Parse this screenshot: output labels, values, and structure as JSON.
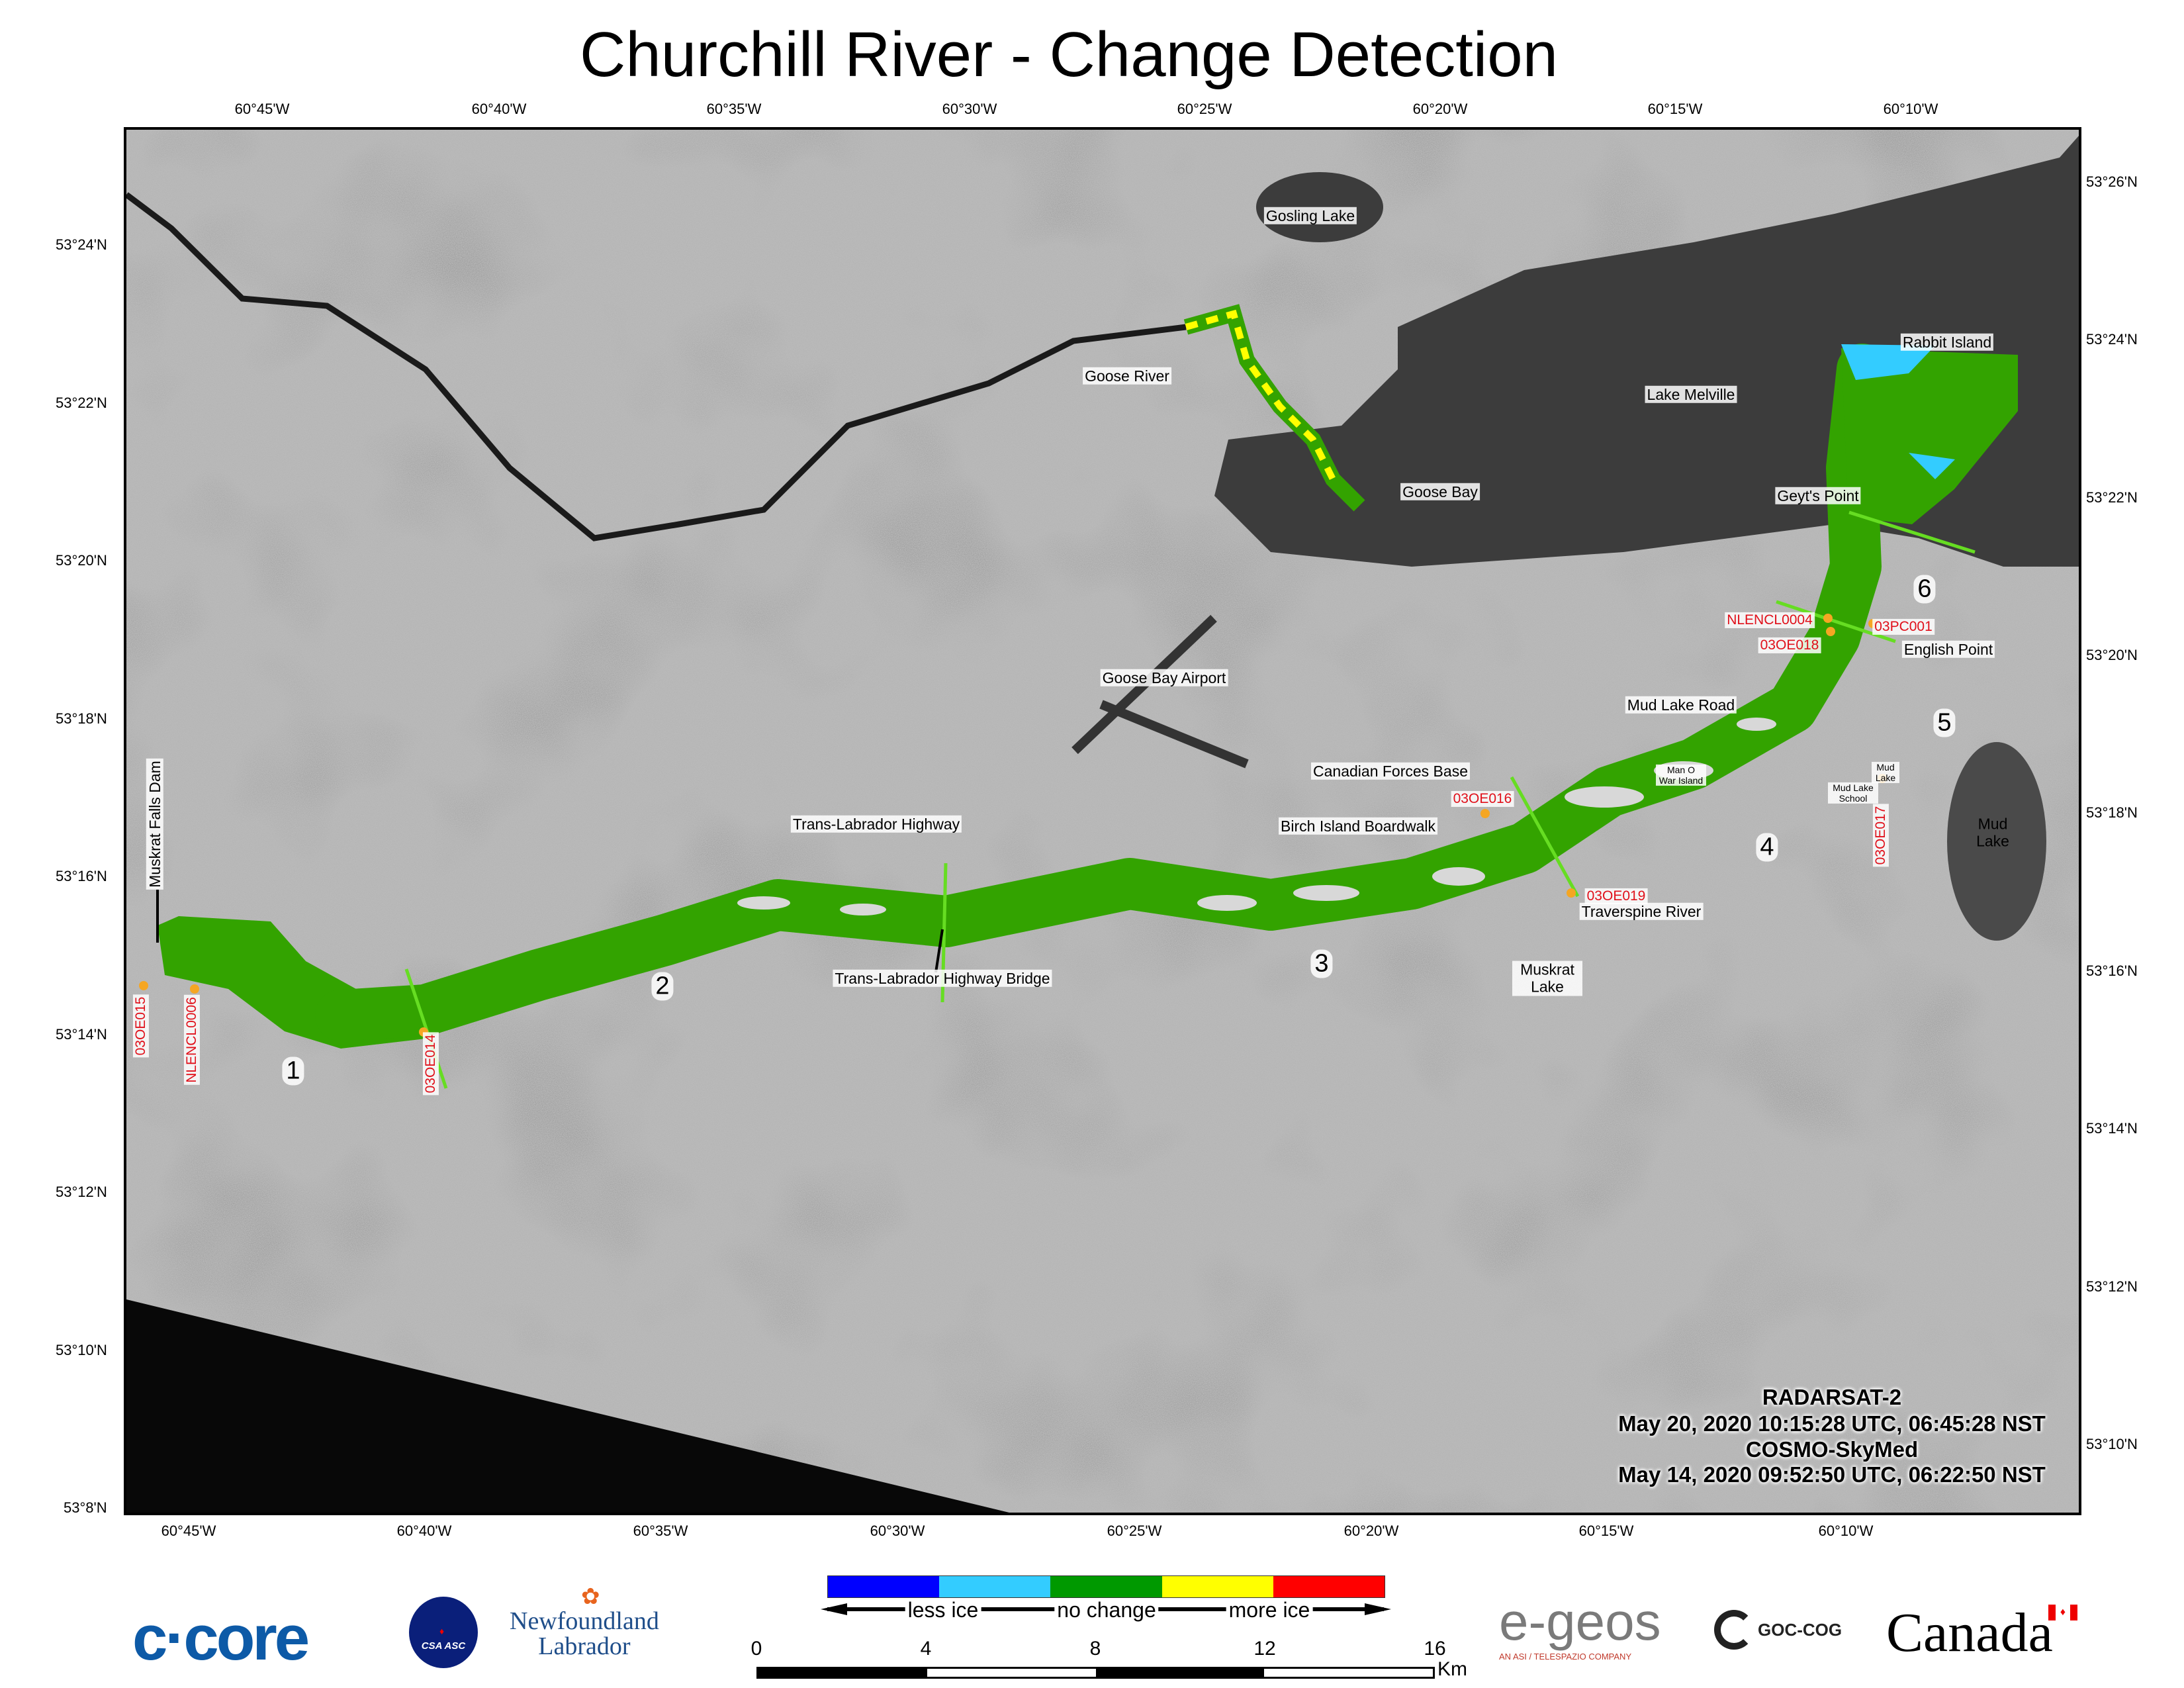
{
  "title": "Churchill River - Change Detection",
  "axes": {
    "top_lon": [
      "60°45'W",
      "60°40'W",
      "60°35'W",
      "60°30'W",
      "60°25'W",
      "60°20'W",
      "60°15'W",
      "60°10'W"
    ],
    "bottom_lon": [
      "60°45'W",
      "60°40'W",
      "60°35'W",
      "60°30'W",
      "60°25'W",
      "60°20'W",
      "60°15'W",
      "60°10'W"
    ],
    "left_lat": [
      "53°24'N",
      "53°22'N",
      "53°20'N",
      "53°18'N",
      "53°16'N",
      "53°14'N",
      "53°12'N",
      "53°10'N",
      "53°8'N"
    ],
    "right_lat": [
      "53°26'N",
      "53°24'N",
      "53°22'N",
      "53°20'N",
      "53°18'N",
      "53°16'N",
      "53°14'N",
      "53°12'N",
      "53°10'N"
    ]
  },
  "map": {
    "places": [
      "Gosling Lake",
      "Goose River",
      "Lake Melville",
      "Rabbit Island",
      "Goose Bay",
      "Geyt's Point",
      "English Point",
      "Goose Bay Airport",
      "Mud Lake Road",
      "Canadian Forces Base",
      "Man O War Island",
      "Mud Lake",
      "Mud Lake School",
      "Trans-Labrador Highway",
      "Birch Island Boardwalk",
      "Mud Lake",
      "Traverspine River",
      "Muskrat Lake",
      "Trans-Labrador Highway Bridge",
      "Muskrat Falls Dam"
    ],
    "stations": [
      "NLENCL0004",
      "03PC001",
      "03OE018",
      "03OE016",
      "03OE017",
      "03OE019",
      "03OE015",
      "NLENCL0006",
      "03OE014"
    ],
    "sections": [
      "1",
      "2",
      "3",
      "4",
      "5",
      "6"
    ],
    "colors": {
      "river_no_change": "#33a300",
      "transect": "#66dd22",
      "station": "#f5a623",
      "station_label": "#e0101a",
      "water_dark": "#3a3a3a"
    }
  },
  "acquisition": {
    "sat1": "RADARSAT-2",
    "sat1_time": "May 20, 2020 10:15:28 UTC, 06:45:28 NST",
    "sat2": "COSMO-SkyMed",
    "sat2_time": "May 14, 2020 09:52:50 UTC, 06:22:50 NST"
  },
  "legend": {
    "colors": [
      "#0000ff",
      "#33ccff",
      "#009900",
      "#ffff00",
      "#ff0000"
    ],
    "less": "less ice",
    "none": "no change",
    "more": "more ice"
  },
  "scale": {
    "ticks": [
      "0",
      "4",
      "8",
      "12",
      "16"
    ],
    "unit": "Km"
  },
  "logos": {
    "ccore": "c·core",
    "csa": "CSA ASC",
    "nl1": "Newfoundland",
    "nl2": "Labrador",
    "egeos": "e-geos",
    "egeos_sub": "AN ASI / TELESPAZIO COMPANY",
    "goc": "GOC-COG",
    "canada": "Canada"
  }
}
